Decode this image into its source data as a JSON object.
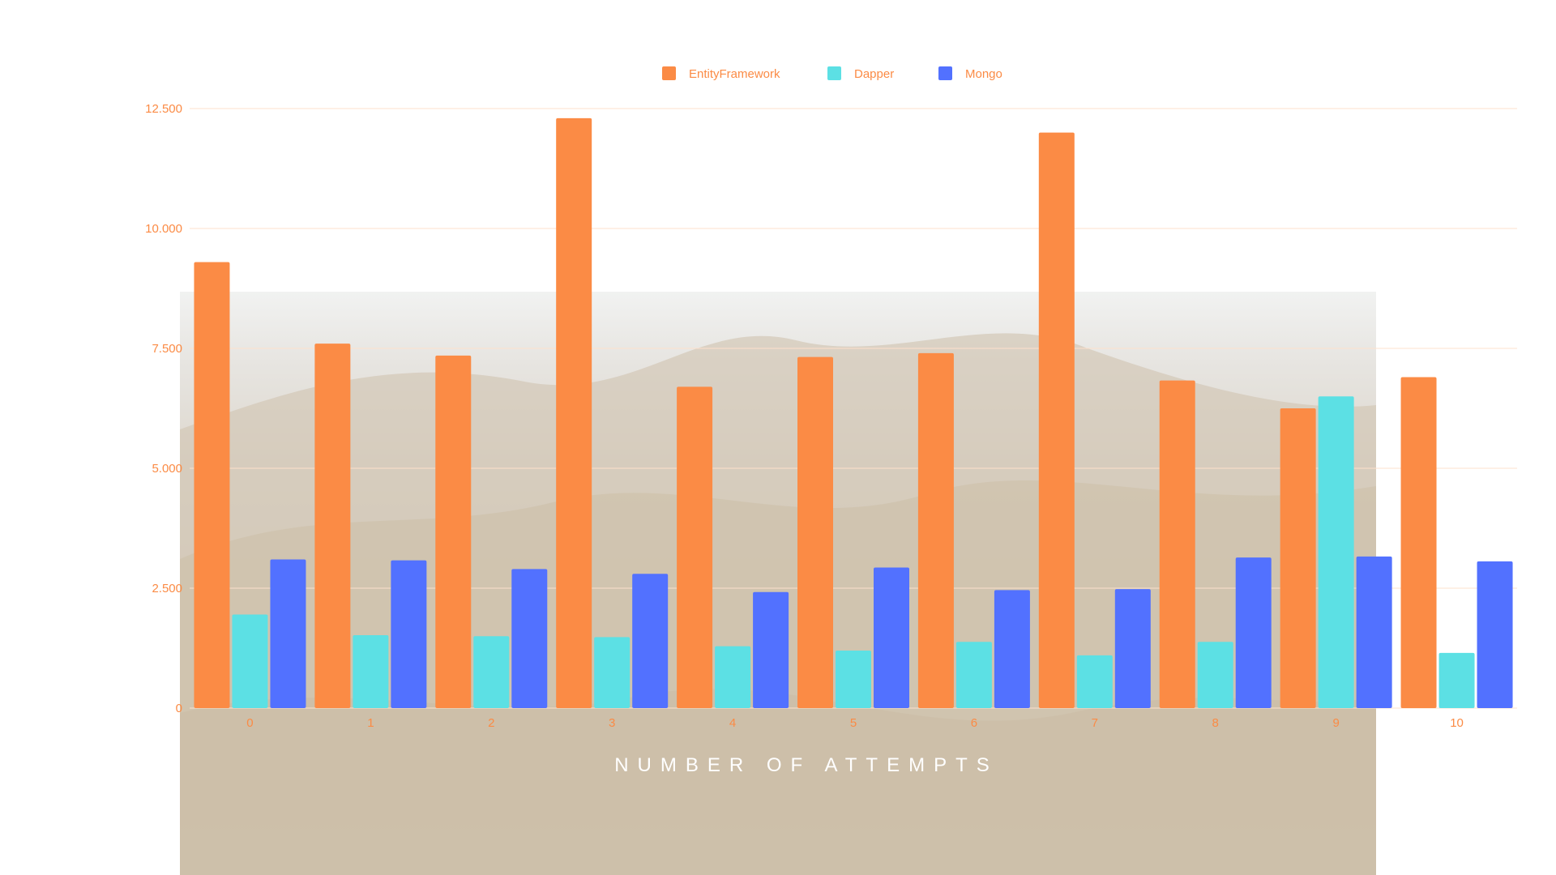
{
  "chart_data": {
    "type": "bar",
    "title": "",
    "xlabel": "NUMBER OF ATTEMPTS",
    "ylabel": "",
    "categories": [
      "0",
      "1",
      "2",
      "3",
      "4",
      "5",
      "6",
      "7",
      "8",
      "9",
      "10"
    ],
    "series": [
      {
        "name": "EntityFramework",
        "color": "#fb8b45",
        "values": [
          9300,
          7600,
          7350,
          12300,
          6700,
          7320,
          7400,
          12000,
          6830,
          6250,
          6900
        ]
      },
      {
        "name": "Dapper",
        "color": "#5ce0e4",
        "values": [
          1950,
          1520,
          1500,
          1480,
          1290,
          1200,
          1380,
          1100,
          1380,
          6500,
          1150
        ]
      },
      {
        "name": "Mongo",
        "color": "#5271ff",
        "values": [
          3100,
          3080,
          2900,
          2800,
          2420,
          2930,
          2460,
          2480,
          3140,
          3160,
          3060
        ]
      }
    ],
    "yticks": [
      0,
      2500,
      5000,
      7500,
      10000,
      12500
    ],
    "ytick_labels": [
      "0",
      "2.500",
      "5.000",
      "7.500",
      "10.000",
      "12.500"
    ],
    "ylim": [
      0,
      12500
    ],
    "grid": true,
    "legend_position": "top-center",
    "colors": {
      "accent": "#fb8b45",
      "grid": "#fde0cc"
    }
  }
}
